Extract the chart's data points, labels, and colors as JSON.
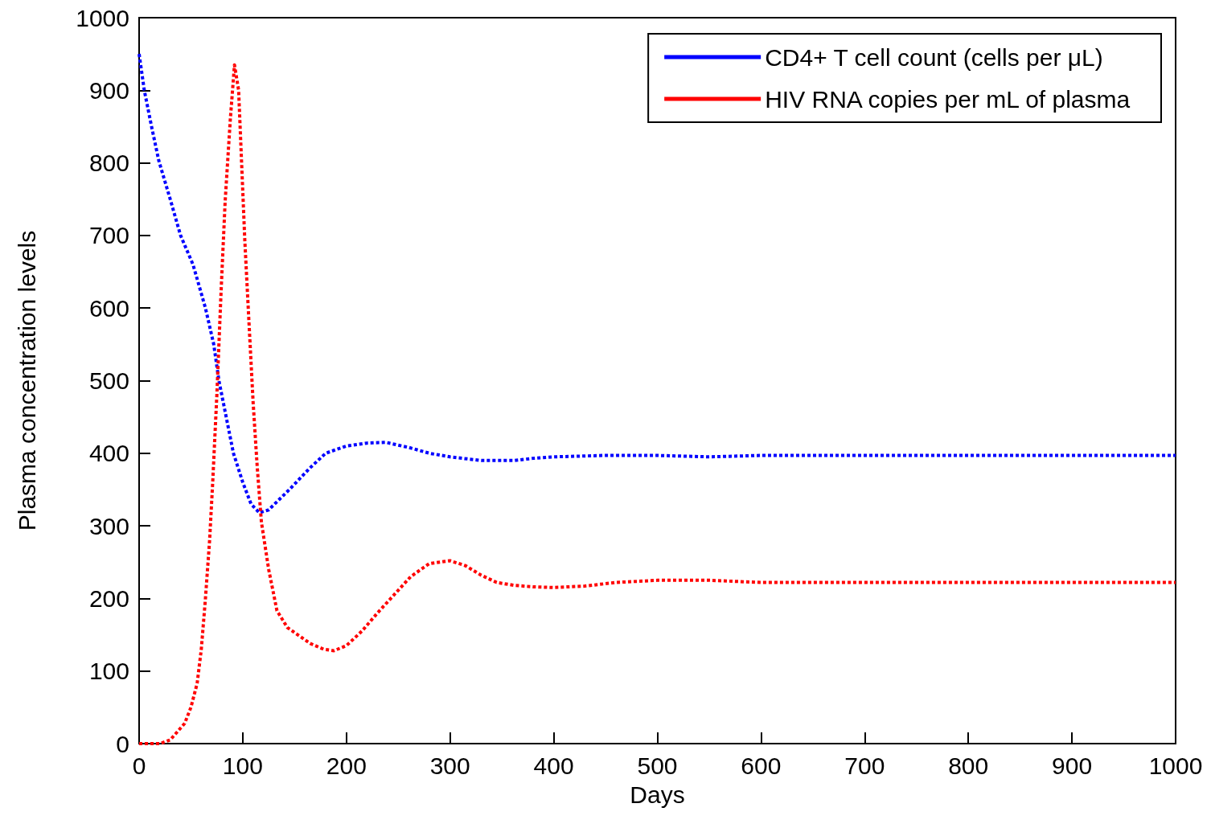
{
  "chart_data": {
    "type": "line",
    "xlabel": "Days",
    "ylabel": "Plasma concentration levels",
    "xlim": [
      0,
      1000
    ],
    "xticks": [
      0,
      100,
      200,
      300,
      400,
      500,
      600,
      700,
      800,
      900,
      1000
    ],
    "ylim": [
      0,
      1000
    ],
    "yticks": [
      0,
      100,
      200,
      300,
      400,
      500,
      600,
      700,
      800,
      900,
      1000
    ],
    "grid": false,
    "legend": "top right",
    "marker": "none",
    "line_style": "dotted",
    "series": [
      {
        "name": "CD4+ T cell count (cells per μL)",
        "color": "#0000ff",
        "x": [
          0,
          5,
          12,
          19,
          30,
          40,
          52,
          64,
          72,
          77,
          84,
          91,
          100,
          108,
          116,
          125,
          145,
          165,
          180,
          200,
          220,
          238,
          260,
          280,
          300,
          330,
          362,
          380,
          400,
          450,
          500,
          550,
          600,
          700,
          800,
          900,
          1000
        ],
        "values": [
          950,
          900,
          850,
          803,
          750,
          700,
          660,
          600,
          550,
          500,
          450,
          400,
          360,
          330,
          318,
          322,
          350,
          380,
          400,
          410,
          414,
          415,
          408,
          400,
          395,
          390,
          390,
          393,
          395,
          397,
          397,
          395,
          397,
          397,
          397,
          397,
          397
        ]
      },
      {
        "name": "HIV RNA copies per mL of plasma",
        "color": "#ff0000",
        "x": [
          0,
          20,
          30,
          44,
          50,
          56,
          60,
          64,
          68,
          71,
          75,
          79,
          83,
          88,
          92,
          96,
          102,
          106,
          110,
          114,
          118,
          125,
          133,
          143,
          153,
          165,
          178,
          188,
          200,
          215,
          230,
          246,
          262,
          280,
          300,
          315,
          330,
          345,
          362,
          380,
          400,
          430,
          460,
          500,
          550,
          600,
          700,
          800,
          900,
          1000
        ],
        "values": [
          0,
          0,
          5,
          28,
          50,
          83,
          130,
          200,
          280,
          360,
          480,
          620,
          747,
          860,
          935,
          900,
          692,
          580,
          470,
          380,
          305,
          240,
          183,
          160,
          150,
          138,
          130,
          128,
          135,
          155,
          180,
          205,
          230,
          248,
          252,
          245,
          232,
          222,
          218,
          216,
          215,
          217,
          222,
          225,
          225,
          222,
          222,
          222,
          222,
          222
        ]
      }
    ]
  }
}
